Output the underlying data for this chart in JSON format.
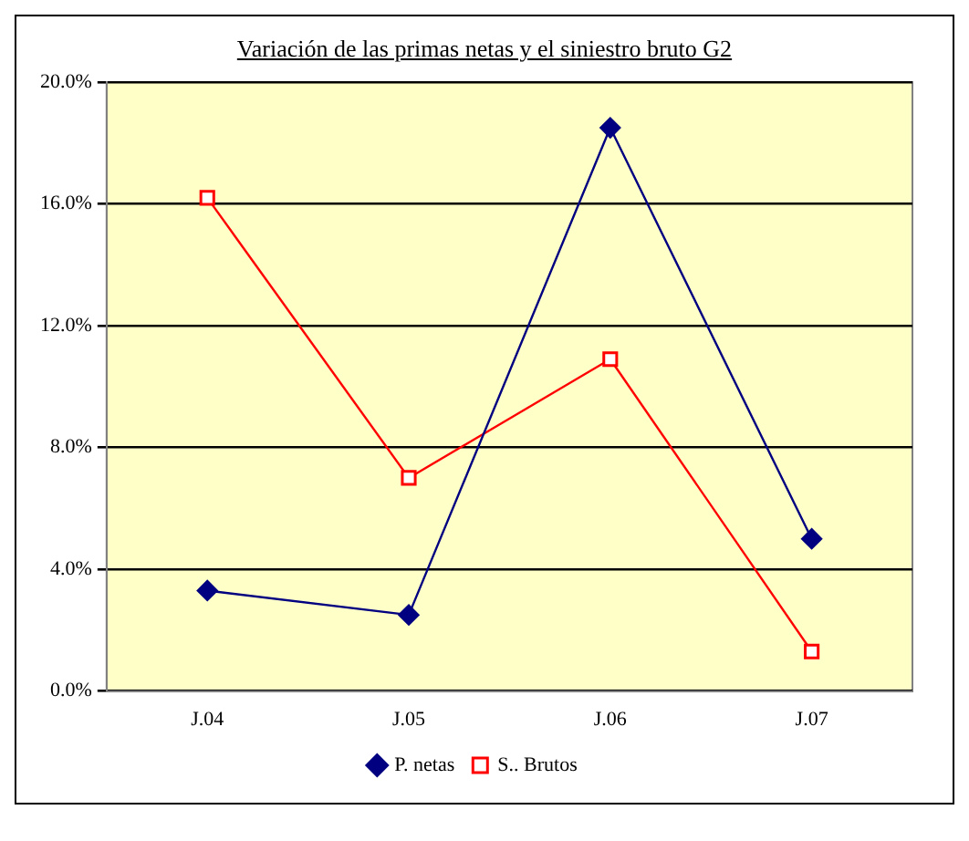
{
  "chart_data": {
    "type": "line",
    "title": "Variación de las primas netas y el siniestro bruto   G2",
    "categories": [
      "J.04",
      "J.05",
      "J.06",
      "J.07"
    ],
    "series": [
      {
        "name": "P. netas",
        "color": "#000080",
        "marker": "diamond",
        "values": [
          3.3,
          2.5,
          18.5,
          5.0
        ]
      },
      {
        "name": "S.. Brutos",
        "color": "#ff0000",
        "marker": "square",
        "values": [
          16.2,
          7.0,
          10.9,
          1.3
        ]
      }
    ],
    "ylim": [
      0,
      20
    ],
    "yticks": [
      {
        "value": 0,
        "label": "0.0%"
      },
      {
        "value": 4,
        "label": "4.0%"
      },
      {
        "value": 8,
        "label": "8.0%"
      },
      {
        "value": 12,
        "label": "12.0%"
      },
      {
        "value": 16,
        "label": "16.0%"
      },
      {
        "value": 20,
        "label": "20.0%"
      }
    ],
    "grid": "y",
    "legend": "bottom",
    "line_style": "solid"
  }
}
